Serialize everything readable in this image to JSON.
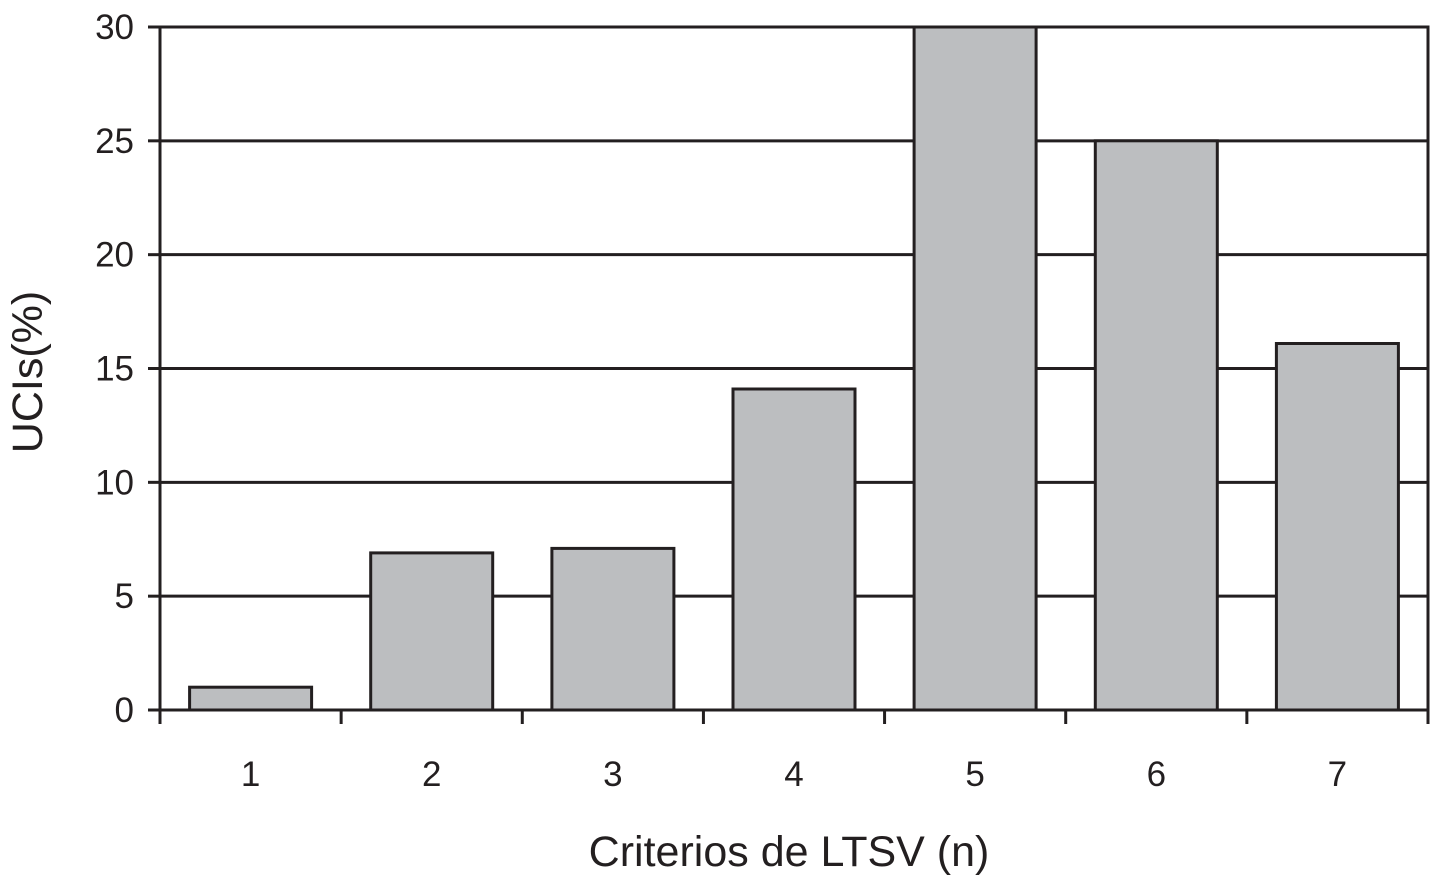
{
  "chart_data": {
    "type": "bar",
    "title": "",
    "xlabel": "Criterios de LTSV (n)",
    "ylabel": "UCIs(%)",
    "categories": [
      "1",
      "2",
      "3",
      "4",
      "5",
      "6",
      "7"
    ],
    "values": [
      1,
      6.9,
      7.1,
      14.1,
      30,
      25,
      16.1
    ],
    "ylim": [
      0,
      30
    ],
    "yticks": [
      "0",
      "5",
      "10",
      "15",
      "20",
      "25",
      "30"
    ],
    "grid": true,
    "legend": "none",
    "colors": {
      "bar_fill": "#bcbec0",
      "bar_stroke": "#231f20",
      "axis": "#231f20",
      "grid": "#231f20",
      "background": "#ffffff"
    }
  }
}
